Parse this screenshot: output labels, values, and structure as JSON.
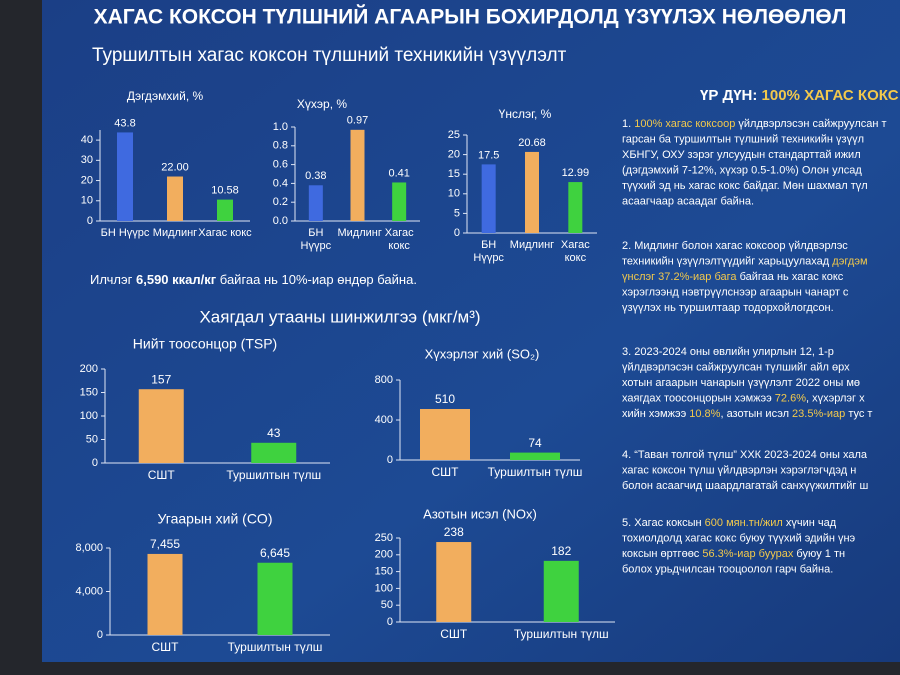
{
  "header": {
    "title": "ХАГАС КОКСОН ТҮЛШНИЙ АГААРЫН БОХИРДОЛД ҮЗҮҮЛЭХ НӨЛӨӨЛӨЛ",
    "subtitle": "Туршилтын хагас коксон түлшний техникийн үзүүлэлт",
    "section": "Хаягдал утааны шинжилгээ (мкг/м³)"
  },
  "note": [
    "Илчлэг ",
    "6,590 ккал/кг",
    " байгаа нь 10%-иар өндөр байна."
  ],
  "result": {
    "label": "ҮР ДҮН: ",
    "headline": "100% ХАГАС КОКС",
    "paragraphs": [
      [
        [
          "1. ",
          "100% хагас коксоор",
          " үйлдвэрлэсэн сайжруулсан т"
        ],
        [
          "гарсан ба туршилтын түлшний техникийн үзүүл"
        ],
        [
          "ХБНГУ, ОХУ зэрэг улсуудын стандарттай ижил"
        ],
        [
          "(дэгдэмхий 7-12%, хүхэр 0.5-1.0%) Олон улсад"
        ],
        [
          "түүхий эд нь хагас кокс байдаг. Мөн шахмал түл"
        ],
        [
          "асаагчаар асаадаг байна."
        ]
      ],
      [
        [
          "2. Мидлинг болон хагас коксоор үйлдвэрлэс"
        ],
        [
          "техникийн үзүүлэлтүүдийг харьцуулахад ",
          "дэгдэм"
        ],
        [
          "",
          "үнслэг 37.2%-иар бага",
          " байгаа нь хагас кокс"
        ],
        [
          "хэрэглээнд нэвтрүүлснээр агаарын чанарт с"
        ],
        [
          "үзүүлэх нь туршилтаар тодорхойлогдсон."
        ]
      ],
      [
        [
          "3. 2023-2024 оны өвлийн улирлын 12, 1-р"
        ],
        [
          "үйлдвэрлэсэн сайжруулсан түлшийг айл өрх"
        ],
        [
          "хотын агаарын чанарын үзүүлэлт 2022 оны мө"
        ],
        [
          "хаягдах тоосонцорын хэмжээ ",
          "72.6%",
          ", хүхэрлэг х"
        ],
        [
          "хийн хэмжээ ",
          "10.8%",
          ", азотын исэл ",
          "23.5%-иар",
          " тус т"
        ]
      ],
      [
        [
          "4. “Таван толгой түлш” ХХК 2023-2024 оны хала"
        ],
        [
          "хагас коксон түлш үйлдвэрлэн хэрэглэгчдэд н"
        ],
        [
          "болон асаагчид шаардлагатай санхүүжилтийг ш"
        ]
      ],
      [
        [
          "5. Хагас коксын ",
          "600 мян.тн/жил",
          " хүчин чад"
        ],
        [
          "тохиолдолд хагас кокс буюу түүхий эдийн үнэ"
        ],
        [
          "коксын өртгөөс ",
          "56.3%-иар буурах",
          " буюу 1 тн"
        ],
        [
          "болох урьдчилсан тооцоолол гарч байна."
        ]
      ]
    ]
  },
  "chart_data": [
    {
      "type": "bar",
      "title": "Дэгдэмхий, %",
      "categories": [
        "БН Нүүрс",
        "Мидлинг",
        "Хагас кокс"
      ],
      "values": [
        43.8,
        22.0,
        10.58
      ],
      "value_labels": [
        "43.8",
        "22.00",
        "10.58"
      ],
      "colors": [
        "#3f6ae0",
        "#f2ae5e",
        "#3fd23f"
      ],
      "ylim": [
        0,
        45
      ],
      "yticks": [
        0,
        10,
        20,
        30,
        40
      ]
    },
    {
      "type": "bar",
      "title": "Хүхэр, %",
      "categories": [
        "БН Нүүрс",
        "Мидлинг",
        "Хагас кокс"
      ],
      "values": [
        0.38,
        0.97,
        0.41
      ],
      "colors": [
        "#3f6ae0",
        "#f2ae5e",
        "#3fd23f"
      ],
      "ylim": [
        0,
        1.0
      ],
      "yticks": [
        {
          "value": 0,
          "label": "0.0"
        },
        0.2,
        0.4,
        0.6,
        0.8,
        {
          "value": 1,
          "label": "1.0"
        }
      ]
    },
    {
      "type": "bar",
      "title": "Үнслэг, %",
      "categories": [
        "БН Нүүрс",
        "Мидлинг",
        "Хагас кокс"
      ],
      "values": [
        17.5,
        20.68,
        12.99
      ],
      "colors": [
        "#3f6ae0",
        "#f2ae5e",
        "#3fd23f"
      ],
      "ylim": [
        0,
        25
      ],
      "yticks": [
        0,
        5,
        10,
        15,
        20,
        25
      ]
    },
    {
      "type": "bar",
      "title": "Нийт тоосонцор (TSP)",
      "categories": [
        "СШТ",
        "Туршилтын түлш"
      ],
      "values": [
        157,
        43
      ],
      "colors": [
        "#f2ae5e",
        "#3fd23f"
      ],
      "ylim": [
        0,
        200
      ],
      "yticks": [
        0,
        50,
        100,
        150,
        200
      ]
    },
    {
      "type": "bar",
      "title": "Хүхэрлэг хий (SO₂)",
      "categories": [
        "СШТ",
        "Туршилтын түлш"
      ],
      "values": [
        510,
        74
      ],
      "colors": [
        "#f2ae5e",
        "#3fd23f"
      ],
      "ylim": [
        0,
        800
      ],
      "yticks": [
        0,
        400,
        800
      ]
    },
    {
      "type": "bar",
      "title": "Угаарын хий (CO)",
      "categories": [
        "СШТ",
        "Туршилтын түлш"
      ],
      "values": [
        7455,
        6645
      ],
      "value_labels": [
        "7,455",
        "6,645"
      ],
      "colors": [
        "#f2ae5e",
        "#3fd23f"
      ],
      "ylim": [
        0,
        8000
      ],
      "yticks": [
        0,
        {
          "value": 4000,
          "label": "4,000"
        },
        {
          "value": 8000,
          "label": "8,000"
        }
      ]
    },
    {
      "type": "bar",
      "title": "Азотын исэл (NOx)",
      "categories": [
        "СШТ",
        "Туршилтын түлш"
      ],
      "values": [
        238,
        182
      ],
      "colors": [
        "#f2ae5e",
        "#3fd23f"
      ],
      "ylim": [
        0,
        250
      ],
      "yticks": [
        0,
        50,
        100,
        150,
        200,
        250
      ]
    }
  ]
}
